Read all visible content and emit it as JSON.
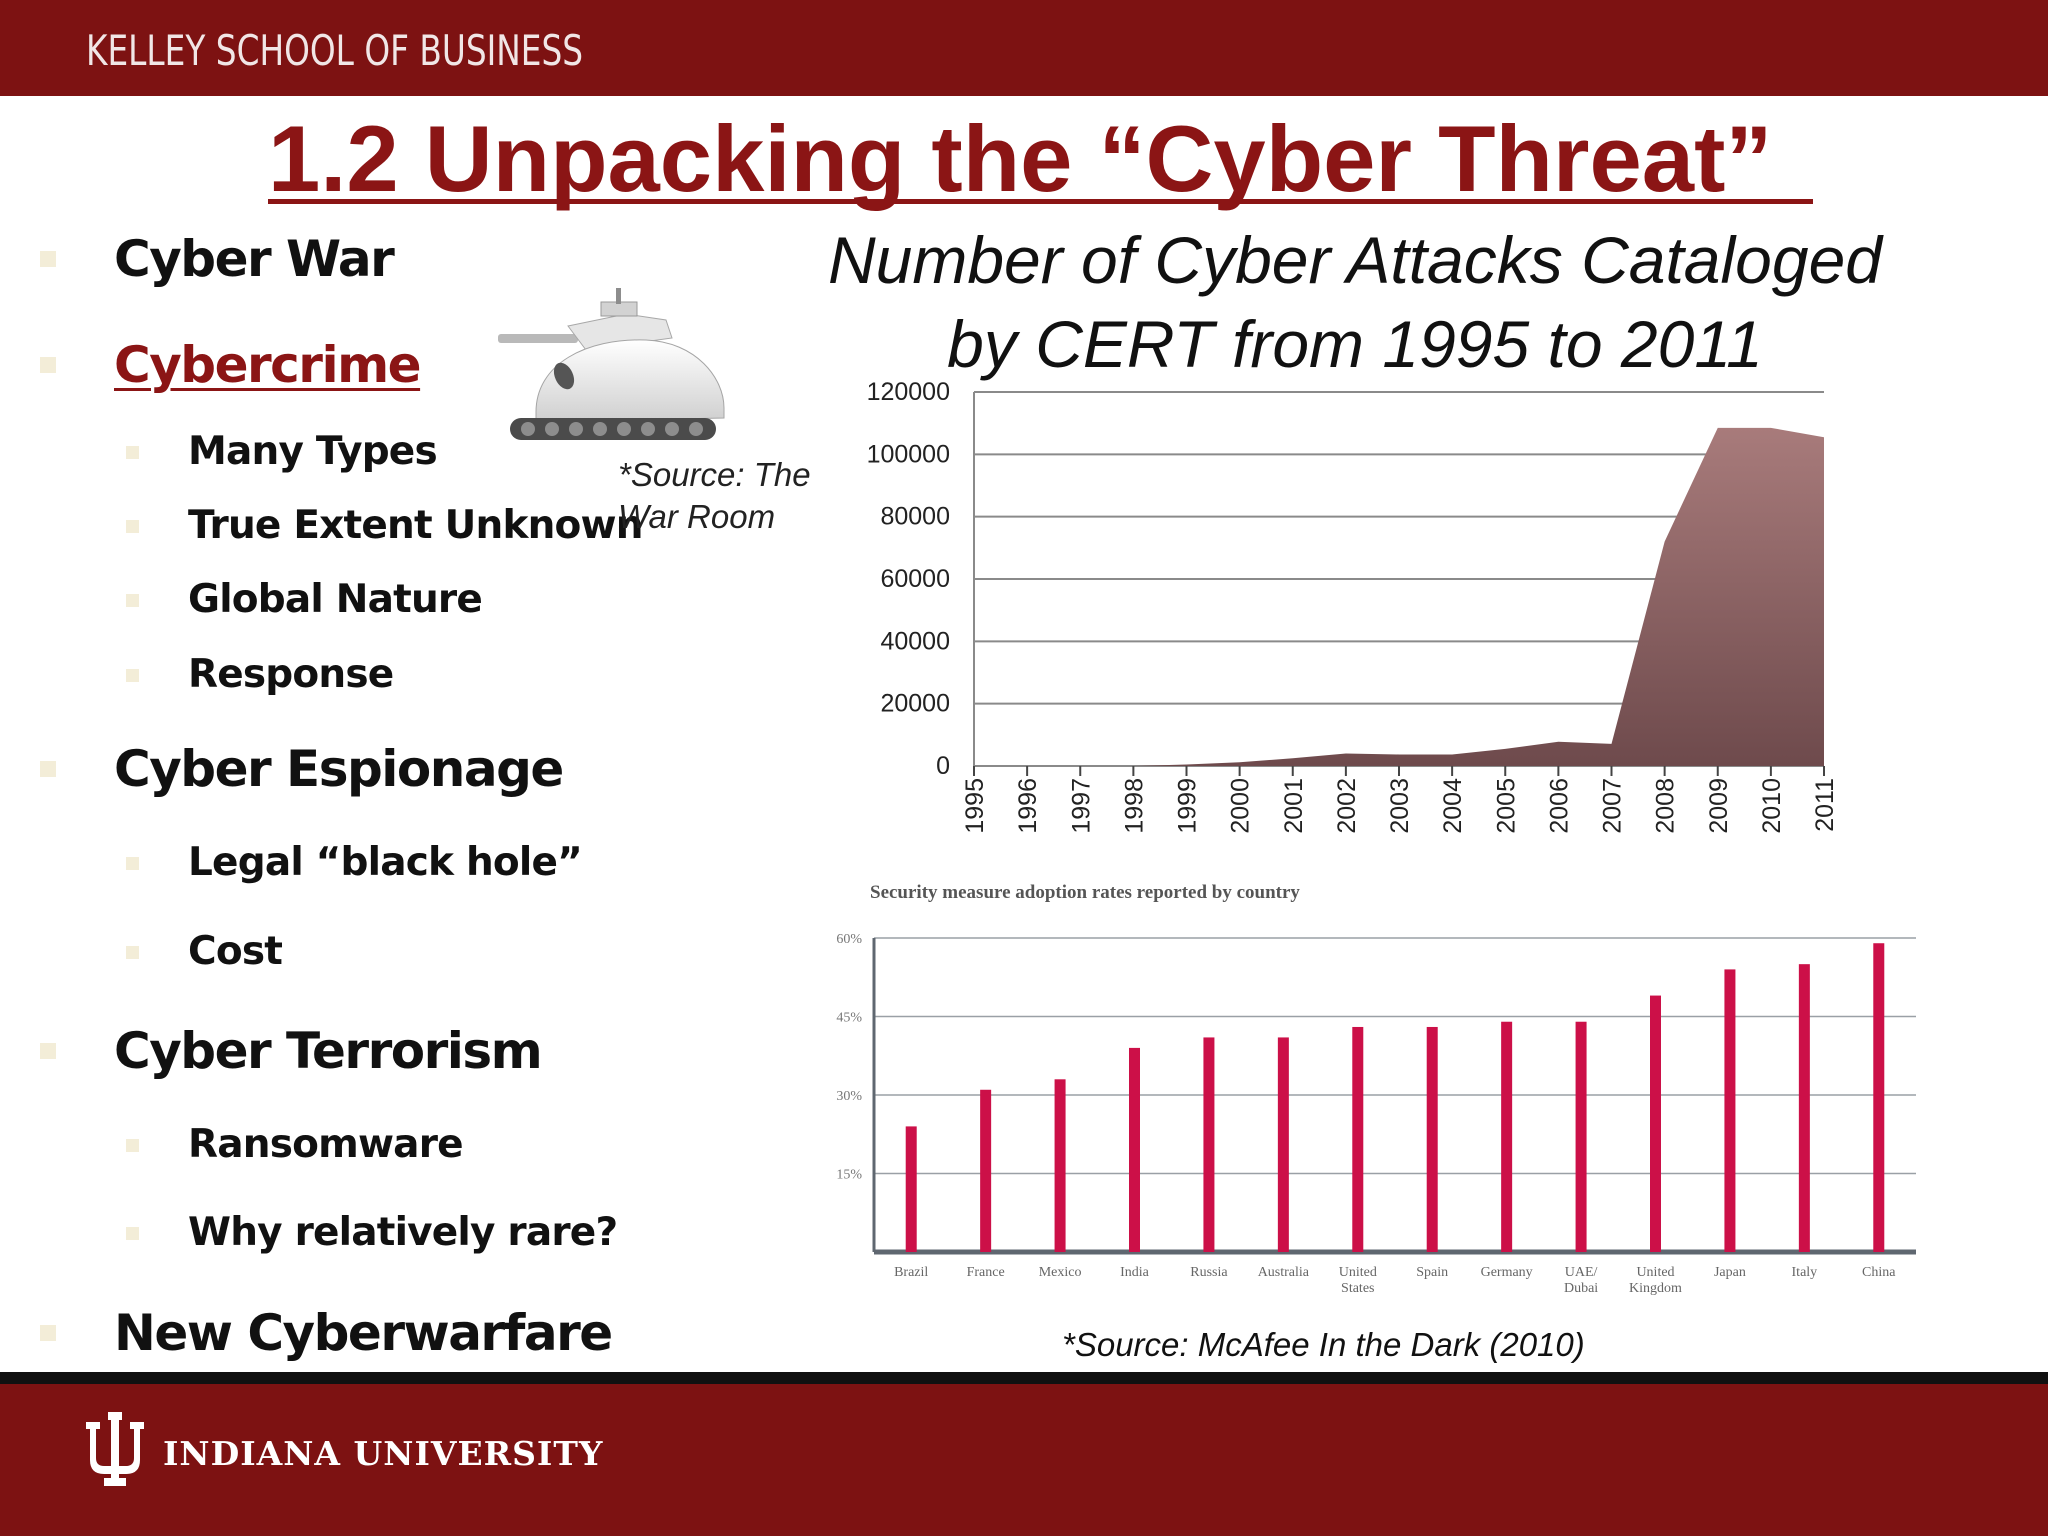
{
  "header": {
    "school": "KELLEY SCHOOL OF BUSINESS"
  },
  "slide": {
    "title": "1.2 Unpacking the “Cyber Threat”"
  },
  "bullets": [
    {
      "text": "Cyber War",
      "level": 1
    },
    {
      "text": "Cybercrime",
      "level": 1,
      "link": true
    },
    {
      "text": "Many Types",
      "level": 2
    },
    {
      "text": "True Extent Unknown",
      "level": 2
    },
    {
      "text": "Global Nature",
      "level": 2
    },
    {
      "text": "Response",
      "level": 2
    },
    {
      "text": "Cyber Espionage",
      "level": 1
    },
    {
      "text": "Legal “black hole”",
      "level": 2
    },
    {
      "text": "Cost",
      "level": 2
    },
    {
      "text": "Cyber Terrorism",
      "level": 1
    },
    {
      "text": "Ransomware",
      "level": 2
    },
    {
      "text": "Why relatively rare?",
      "level": 2
    },
    {
      "text": "New Cyberwarfare",
      "level": 1
    }
  ],
  "image": {
    "icon": "tank-image",
    "source_line1": "*Source: The",
    "source_line2": "War Room"
  },
  "chart_title_line1": "Number of Cyber Attacks Cataloged",
  "chart_title_line2": "by CERT from 1995 to 2011",
  "chart_data": [
    {
      "type": "area",
      "x": [
        "1995",
        "1996",
        "1997",
        "1998",
        "1999",
        "2000",
        "2001",
        "2002",
        "2003",
        "2004",
        "2005",
        "2006",
        "2007",
        "2008",
        "2009",
        "2010",
        "2011"
      ],
      "values": [
        0,
        0,
        0,
        0,
        500,
        1200,
        2500,
        4000,
        3700,
        3700,
        5500,
        7800,
        7100,
        72000,
        108500,
        108500,
        105500
      ],
      "yticks": [
        "0",
        "20000",
        "40000",
        "60000",
        "80000",
        "100000",
        "120000"
      ],
      "ylim": [
        0,
        120000
      ],
      "grid": true,
      "colors": {
        "fill_top": "#a87b7b",
        "fill_bottom": "#6e4a4c",
        "grid": "#8a8a8a"
      }
    },
    {
      "type": "bar",
      "title": "Security  measure adoption rates reported by country",
      "categories": [
        "Brazil",
        "France",
        "Mexico",
        "India",
        "Russia",
        "Australia",
        "United States",
        "Spain",
        "Germany",
        "UAE/ Dubai",
        "United Kingdom",
        "Japan",
        "Italy",
        "China"
      ],
      "category_lines": [
        [
          "Brazil"
        ],
        [
          "France"
        ],
        [
          "Mexico"
        ],
        [
          "India"
        ],
        [
          "Russia"
        ],
        [
          "Australia"
        ],
        [
          "United",
          "States"
        ],
        [
          "Spain"
        ],
        [
          "Germany"
        ],
        [
          "UAE/",
          "Dubai"
        ],
        [
          "United",
          "Kingdom"
        ],
        [
          "Japan"
        ],
        [
          "Italy"
        ],
        [
          "China"
        ]
      ],
      "values": [
        24,
        31,
        33,
        39,
        41,
        41,
        43,
        43,
        44,
        44,
        49,
        54,
        55,
        59
      ],
      "yticks": [
        "15%",
        "30%",
        "45%",
        "60%"
      ],
      "ylim": [
        0,
        60
      ],
      "grid": true,
      "colors": {
        "bar": "#cc1048",
        "axis": "#5f6770",
        "grid": "#9aa0a6"
      }
    }
  ],
  "chart_source": "*Source: McAfee In the Dark (2010)",
  "footer": {
    "university": "INDIANA UNIVERSITY",
    "logo_icon": "iu-trident-logo"
  }
}
